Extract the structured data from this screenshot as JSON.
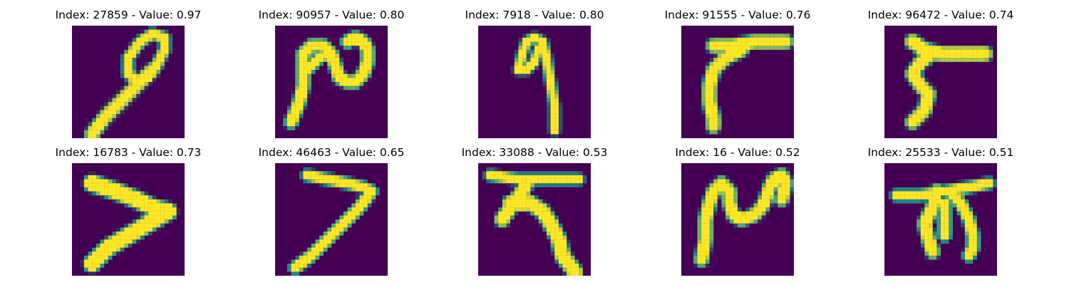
{
  "colors": {
    "background": "#440154",
    "mid": "#21918c",
    "foreground": "#fde725"
  },
  "panels": [
    {
      "title": "Index: 27859 - Value: 0.97",
      "strokes": [
        {
          "type": "line",
          "points": [
            [
              5,
              27
            ],
            [
              8,
              23
            ],
            [
              13,
              18
            ],
            [
              17,
              14
            ],
            [
              20,
              11
            ]
          ],
          "w": 2.4
        },
        {
          "type": "line",
          "points": [
            [
              17,
              14
            ],
            [
              14,
              12
            ],
            [
              14,
              8
            ],
            [
              17,
              4
            ],
            [
              20,
              2
            ],
            [
              23,
              3
            ],
            [
              23,
              6
            ],
            [
              21,
              10
            ],
            [
              19,
              13
            ]
          ],
          "w": 1.7
        }
      ]
    },
    {
      "title": "Index: 90957 - Value: 0.80",
      "strokes": [
        {
          "type": "line",
          "points": [
            [
              4,
              24
            ],
            [
              6,
              19
            ],
            [
              7,
              15
            ],
            [
              7,
              11
            ],
            [
              7,
              7
            ],
            [
              9,
              5
            ],
            [
              12,
              5
            ],
            [
              14,
              7
            ],
            [
              15,
              10
            ],
            [
              16,
              13
            ],
            [
              18,
              14
            ],
            [
              20,
              14
            ],
            [
              22,
              12
            ],
            [
              23,
              9
            ],
            [
              23,
              6
            ],
            [
              22,
              4
            ],
            [
              20,
              3
            ],
            [
              18,
              4
            ]
          ],
          "w": 2.2
        },
        {
          "type": "line",
          "points": [
            [
              8,
              11
            ],
            [
              11,
              8
            ],
            [
              13,
              7
            ]
          ],
          "w": 1.8
        }
      ]
    },
    {
      "title": "Index: 7918 - Value: 0.80",
      "strokes": [
        {
          "type": "line",
          "points": [
            [
              19,
              26
            ],
            [
              19,
              20
            ],
            [
              18,
              14
            ],
            [
              17,
              8
            ],
            [
              16,
              4
            ],
            [
              14,
              3
            ],
            [
              12,
              4
            ],
            [
              11,
              7
            ],
            [
              10,
              11
            ],
            [
              12,
              11
            ],
            [
              14,
              9
            ],
            [
              15,
              6
            ]
          ],
          "w": 1.4
        }
      ]
    },
    {
      "title": "Index: 91555 - Value: 0.76",
      "strokes": [
        {
          "type": "line",
          "points": [
            [
              8,
              5
            ],
            [
              13,
              5
            ],
            [
              18,
              4
            ],
            [
              23,
              4
            ],
            [
              26,
              4
            ]
          ],
          "w": 2.4
        },
        {
          "type": "line",
          "points": [
            [
              15,
              6
            ],
            [
              11,
              8
            ],
            [
              8,
              11
            ],
            [
              7,
              15
            ],
            [
              7,
              19
            ],
            [
              8,
              23
            ],
            [
              8,
              25
            ]
          ],
          "w": 2.4
        }
      ]
    },
    {
      "title": "Index: 96472 - Value: 0.74",
      "strokes": [
        {
          "type": "line",
          "points": [
            [
              7,
              4
            ],
            [
              10,
              6
            ],
            [
              14,
              7
            ],
            [
              19,
              7
            ],
            [
              25,
              7
            ]
          ],
          "w": 2.6
        },
        {
          "type": "line",
          "points": [
            [
              12,
              7
            ],
            [
              9,
              9
            ],
            [
              7,
              12
            ],
            [
              9,
              15
            ],
            [
              11,
              17
            ],
            [
              10,
              21
            ],
            [
              7,
              24
            ]
          ],
          "w": 2.4
        }
      ]
    },
    {
      "title": "Index: 16783 - Value: 0.73",
      "strokes": [
        {
          "type": "line",
          "points": [
            [
              5,
              5
            ],
            [
              11,
              7
            ],
            [
              16,
              9
            ],
            [
              20,
              11
            ],
            [
              24,
              12
            ],
            [
              19,
              15
            ],
            [
              14,
              18
            ],
            [
              9,
              21
            ],
            [
              5,
              25
            ]
          ],
          "w": 3.2
        }
      ]
    },
    {
      "title": "Index: 46463 - Value: 0.65",
      "strokes": [
        {
          "type": "line",
          "points": [
            [
              8,
              3
            ],
            [
              13,
              4
            ],
            [
              18,
              5
            ],
            [
              22,
              6
            ],
            [
              24,
              7
            ]
          ],
          "w": 1.8
        },
        {
          "type": "line",
          "points": [
            [
              24,
              7
            ],
            [
              21,
              11
            ],
            [
              17,
              15
            ],
            [
              13,
              19
            ],
            [
              9,
              23
            ],
            [
              5,
              26
            ]
          ],
          "w": 2.0
        }
      ]
    },
    {
      "title": "Index: 33088 - Value: 0.53",
      "strokes": [
        {
          "type": "line",
          "points": [
            [
              3,
              3
            ],
            [
              10,
              4
            ],
            [
              18,
              4
            ],
            [
              25,
              4
            ]
          ],
          "w": 1.7
        },
        {
          "type": "line",
          "points": [
            [
              12,
              5
            ],
            [
              11,
              7
            ],
            [
              8,
              11
            ],
            [
              6,
              14
            ]
          ],
          "w": 2.6
        },
        {
          "type": "line",
          "points": [
            [
              8,
              10
            ],
            [
              13,
              10
            ],
            [
              16,
              12
            ],
            [
              18,
              15
            ],
            [
              20,
              19
            ],
            [
              21,
              23
            ],
            [
              24,
              27
            ]
          ],
          "w": 2.8
        }
      ]
    },
    {
      "title": "Index: 16 - Value: 0.52",
      "strokes": [
        {
          "type": "line",
          "points": [
            [
              5,
              24
            ],
            [
              6,
              19
            ],
            [
              6,
              14
            ],
            [
              7,
              10
            ],
            [
              8,
              7
            ],
            [
              10,
              5
            ],
            [
              12,
              7
            ],
            [
              12,
              10
            ],
            [
              13,
              13
            ],
            [
              15,
              14
            ],
            [
              18,
              13
            ],
            [
              20,
              11
            ],
            [
              21,
              9
            ],
            [
              22,
              6
            ],
            [
              23,
              4
            ],
            [
              25,
              3
            ],
            [
              26,
              5
            ],
            [
              25,
              9
            ]
          ],
          "w": 2.3
        }
      ]
    },
    {
      "title": "Index: 25533 - Value: 0.51",
      "strokes": [
        {
          "type": "line",
          "points": [
            [
              3,
              8
            ],
            [
              9,
              8
            ],
            [
              15,
              7
            ],
            [
              21,
              6
            ],
            [
              26,
              5
            ]
          ],
          "w": 1.8
        },
        {
          "type": "line",
          "points": [
            [
              13,
              7
            ],
            [
              12,
              11
            ],
            [
              10,
              15
            ],
            [
              11,
              19
            ],
            [
              12,
              22
            ]
          ],
          "w": 2.4
        },
        {
          "type": "line",
          "points": [
            [
              15,
              10
            ],
            [
              15,
              14
            ],
            [
              15,
              18
            ]
          ],
          "w": 2.0
        },
        {
          "type": "line",
          "points": [
            [
              16,
              7
            ],
            [
              19,
              10
            ],
            [
              21,
              14
            ],
            [
              22,
              18
            ],
            [
              22,
              21
            ],
            [
              21,
              23
            ]
          ],
          "w": 2.0
        }
      ]
    }
  ]
}
